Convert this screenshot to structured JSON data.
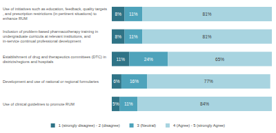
{
  "chart_data": {
    "type": "bar",
    "orientation": "horizontal",
    "stacked": true,
    "data_labels": true,
    "tick_labels": "y",
    "grid": false,
    "legend": "bottom",
    "xlim": [
      0,
      100
    ],
    "categories": [
      "Use of initiatives such as education, feedback, quality targets, and prescription restrictions (in pertinent situations) to enhance RUM",
      "Inclusion of problem-based pharmacotherapy training in undergraduate curricula at relevant institutions, and in-service continual professional development",
      "Establishment of drug and therapeutics committees (DTC) in districts/regions and hospitals",
      "Development and use of national or regional formularies",
      "Use of clinical guidelines to promote RUM"
    ],
    "series": [
      {
        "name": "1 (strongly disagree) - 2 (disagree)",
        "color": "#2f7386",
        "values": [
          8,
          8,
          11,
          6,
          5
        ],
        "value_labels": [
          "8%",
          "8%",
          "11%",
          "6%",
          "5%"
        ]
      },
      {
        "name": "3 (Neutral)",
        "color": "#4ea3bb",
        "values": [
          11,
          11,
          24,
          16,
          11
        ],
        "value_labels": [
          "11%",
          "11%",
          "24%",
          "16%",
          "11%"
        ]
      },
      {
        "name": "4 (Agree) - 5 (strongly Agree)",
        "color": "#a8d4e0",
        "values": [
          81,
          81,
          65,
          77,
          84
        ],
        "value_labels": [
          "81%",
          "81%",
          "65%",
          "77%",
          "84%"
        ]
      }
    ]
  }
}
